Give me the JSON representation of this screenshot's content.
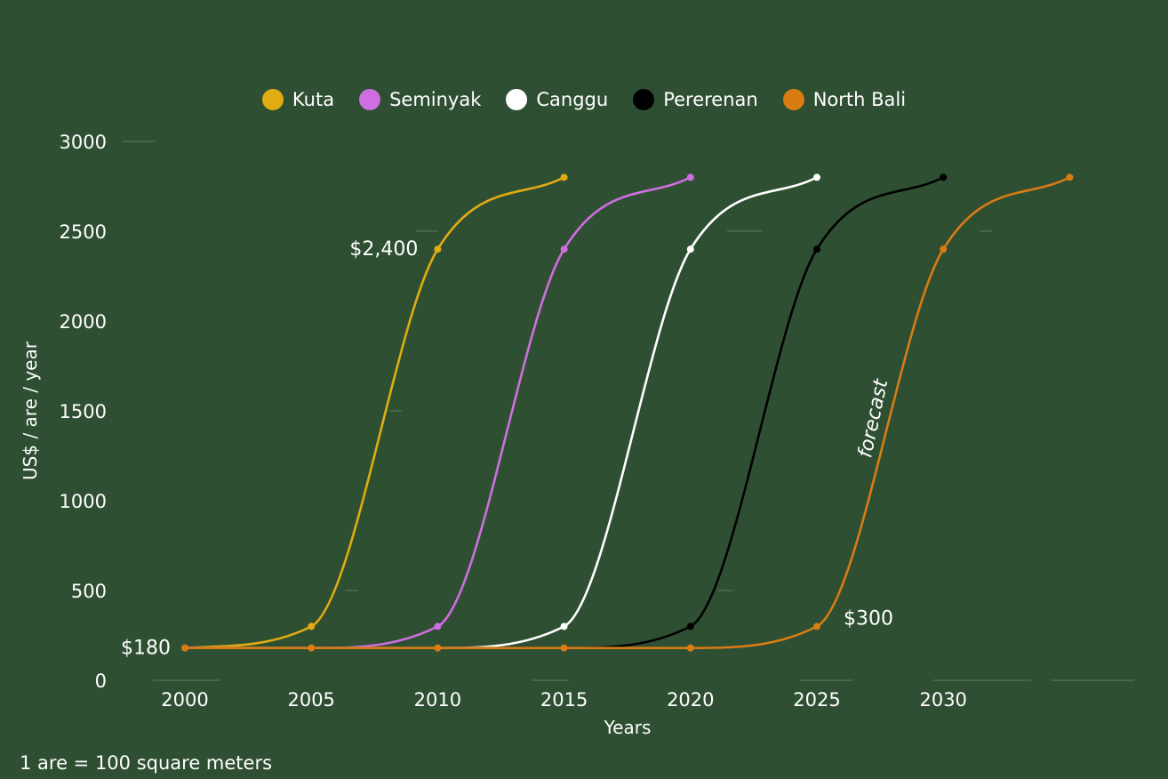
{
  "chart_data": {
    "type": "line",
    "xlabel": "Years",
    "ylabel": "US$ / are / year",
    "x_ticks": [
      2000,
      2005,
      2010,
      2015,
      2020,
      2025,
      2030
    ],
    "y_ticks": [
      0,
      500,
      1000,
      1500,
      2000,
      2500,
      3000
    ],
    "xlim": [
      2000,
      2035
    ],
    "ylim": [
      0,
      3000
    ],
    "grid": false,
    "legend_position": "top-center",
    "series": [
      {
        "name": "Kuta",
        "color": "#e0ac12",
        "x": [
          2000,
          2005,
          2010,
          2015
        ],
        "y": [
          180,
          300,
          2400,
          2800
        ]
      },
      {
        "name": "Seminyak",
        "color": "#cf6ee0",
        "x": [
          2000,
          2005,
          2010,
          2015,
          2020
        ],
        "y": [
          180,
          180,
          300,
          2400,
          2800
        ]
      },
      {
        "name": "Canggu",
        "color": "#ffffff",
        "x": [
          2000,
          2005,
          2010,
          2015,
          2020,
          2025
        ],
        "y": [
          180,
          180,
          180,
          300,
          2400,
          2800
        ]
      },
      {
        "name": "Pererenan",
        "color": "#000000",
        "x": [
          2000,
          2005,
          2010,
          2015,
          2020,
          2025,
          2030
        ],
        "y": [
          180,
          180,
          180,
          180,
          300,
          2400,
          2800
        ]
      },
      {
        "name": "North Bali",
        "color": "#d97c14",
        "x": [
          2000,
          2005,
          2010,
          2015,
          2020,
          2025,
          2030,
          2035
        ],
        "y": [
          180,
          180,
          180,
          180,
          180,
          300,
          2400,
          2800
        ]
      }
    ],
    "annotations": [
      {
        "text": "$2,400",
        "x": 2010,
        "y": 2400
      },
      {
        "text": "$180",
        "x": 2000,
        "y": 180
      },
      {
        "text": "$300",
        "x": 2025,
        "y": 300
      },
      {
        "text": "forecast",
        "x": 2027.5,
        "y": 1450
      }
    ]
  },
  "footnote": "1 are = 100 square meters"
}
